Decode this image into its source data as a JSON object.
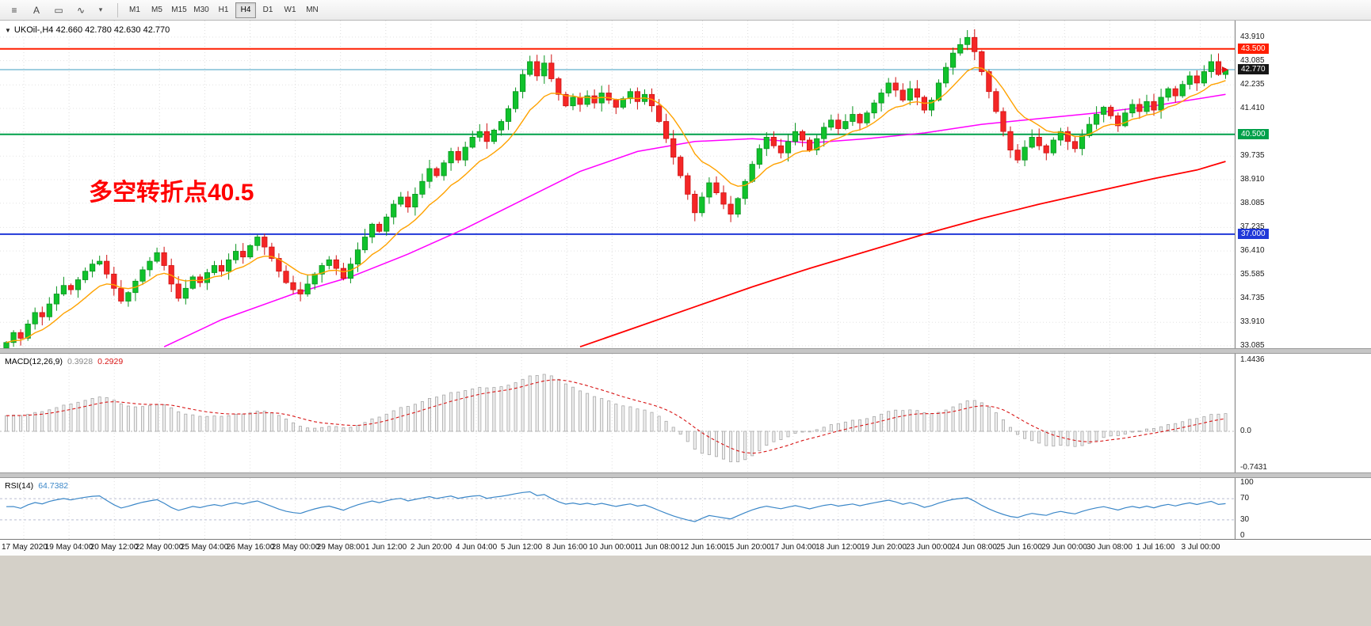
{
  "toolbar": {
    "left_icons": [
      {
        "name": "charts-list-icon",
        "glyph": "≡"
      },
      {
        "name": "text-tool-icon",
        "glyph": "A"
      },
      {
        "name": "shape-tool-icon",
        "glyph": "▭"
      },
      {
        "name": "line-studies-icon",
        "glyph": "∿"
      },
      {
        "name": "dropdown-caret-icon",
        "glyph": "▾"
      }
    ],
    "timeframes": [
      "M1",
      "M5",
      "M15",
      "M30",
      "H1",
      "H4",
      "D1",
      "W1",
      "MN"
    ],
    "selected_timeframe": "H4"
  },
  "chart": {
    "title": "UKOil-,H4 42.660 42.780 42.630 42.770",
    "symbol": "UKOil-",
    "period": "H4",
    "annotation": "多空转折点40.5",
    "axis_labels": [
      "43.910",
      "43.085",
      "42.235",
      "41.410",
      "39.735",
      "38.910",
      "38.085",
      "37.235",
      "36.410",
      "35.585",
      "34.735",
      "33.910",
      "33.085"
    ],
    "badges": [
      {
        "label": "43.500",
        "price": 43.5,
        "color": "#ff1e00"
      },
      {
        "label": "42.770",
        "price": 42.77,
        "color": "#161616"
      },
      {
        "label": "40.500",
        "price": 40.5,
        "color": "#00a04a"
      },
      {
        "label": "37.000",
        "price": 37.0,
        "color": "#2038d8"
      }
    ],
    "hlines": [
      {
        "price": 43.5,
        "color": "#ff1e00",
        "width": 2,
        "dash": ""
      },
      {
        "price": 42.77,
        "color": "#3d9dc0",
        "width": 1,
        "dash": ""
      },
      {
        "price": 40.5,
        "color": "#00a04a",
        "width": 2,
        "dash": ""
      },
      {
        "price": 37.0,
        "color": "#2038d8",
        "width": 2,
        "dash": ""
      }
    ]
  },
  "macd": {
    "name": "MACD(12,26,9)",
    "value_main": "0.3928",
    "value_signal": "0.2929",
    "axis": [
      "1.4436",
      "0.0",
      "-0.7431"
    ]
  },
  "rsi": {
    "name": "RSI(14)",
    "value": "64.7382",
    "axis": [
      "100",
      "70",
      "30",
      "0"
    ],
    "levels": [
      70,
      30
    ]
  },
  "time_axis": [
    "17 May 2020",
    "19 May 04:00",
    "20 May 12:00",
    "22 May 00:00",
    "25 May 04:00",
    "26 May 16:00",
    "28 May 00:00",
    "29 May 08:00",
    "1 Jun 12:00",
    "2 Jun 20:00",
    "4 Jun 04:00",
    "5 Jun 12:00",
    "8 Jun 16:00",
    "10 Jun 00:00",
    "11 Jun 08:00",
    "12 Jun 16:00",
    "15 Jun 20:00",
    "17 Jun 04:00",
    "18 Jun 12:00",
    "19 Jun 20:00",
    "23 Jun 00:00",
    "24 Jun 08:00",
    "25 Jun 16:00",
    "29 Jun 00:00",
    "30 Jun 08:00",
    "1 Jul 16:00",
    "3 Jul 00:00"
  ],
  "chart_data": {
    "type": "candlestick",
    "symbol": "UKOil-",
    "timeframe": "H4",
    "last_bar_ohlc": {
      "open": 42.66,
      "high": 42.78,
      "low": 42.63,
      "close": 42.77
    },
    "price_range_visible": [
      33.085,
      43.91
    ],
    "grid_prices": [
      43.91,
      43.085,
      42.235,
      41.41,
      40.585,
      39.735,
      38.91,
      38.085,
      37.235,
      36.41,
      35.585,
      34.735,
      33.91,
      33.085
    ],
    "closes": [
      33.2,
      33.55,
      33.35,
      33.85,
      34.25,
      34.1,
      34.55,
      34.9,
      35.2,
      35.05,
      35.4,
      35.7,
      35.95,
      36.05,
      35.6,
      35.1,
      34.65,
      34.95,
      35.35,
      35.75,
      36.05,
      36.35,
      35.9,
      35.25,
      34.75,
      35.1,
      35.5,
      35.3,
      35.65,
      35.9,
      35.7,
      36.1,
      36.4,
      36.2,
      36.6,
      36.9,
      36.55,
      36.15,
      35.7,
      35.3,
      35.05,
      34.9,
      35.25,
      35.6,
      35.9,
      36.1,
      35.8,
      35.45,
      35.95,
      36.45,
      36.9,
      37.35,
      37.1,
      37.6,
      38.05,
      38.3,
      37.95,
      38.4,
      38.85,
      39.3,
      39.05,
      39.5,
      39.9,
      39.6,
      40.05,
      40.4,
      40.6,
      40.25,
      40.65,
      40.95,
      41.4,
      42.0,
      42.6,
      43.05,
      42.55,
      43.0,
      42.45,
      41.9,
      41.5,
      41.8,
      41.55,
      41.85,
      41.6,
      41.95,
      41.7,
      41.45,
      41.75,
      42.0,
      41.65,
      41.9,
      41.5,
      40.95,
      40.35,
      39.7,
      39.05,
      38.4,
      37.75,
      38.3,
      38.8,
      38.45,
      38.05,
      37.7,
      38.25,
      38.85,
      39.45,
      40.0,
      40.4,
      40.1,
      39.85,
      40.25,
      40.6,
      40.3,
      39.95,
      40.35,
      40.75,
      41.0,
      40.7,
      40.95,
      41.2,
      40.9,
      41.25,
      41.6,
      41.95,
      42.3,
      42.05,
      41.7,
      42.1,
      41.8,
      41.35,
      41.7,
      42.3,
      42.85,
      43.35,
      43.65,
      43.9,
      43.4,
      42.7,
      42.0,
      41.3,
      40.6,
      39.95,
      39.6,
      40.05,
      40.4,
      40.1,
      39.85,
      40.3,
      40.6,
      40.25,
      40.0,
      40.45,
      40.85,
      41.2,
      41.45,
      41.15,
      40.8,
      41.25,
      41.55,
      41.3,
      41.65,
      41.35,
      41.8,
      42.1,
      41.85,
      42.25,
      42.55,
      42.3,
      42.7,
      43.05,
      42.6,
      42.77
    ],
    "moving_averages": {
      "fast_ema_period": 10,
      "fast_color": "#ffa200",
      "medium_color": "#ff00ff",
      "medium_anchors": [
        [
          22,
          33.05
        ],
        [
          30,
          34.0
        ],
        [
          40,
          34.9
        ],
        [
          48,
          35.5
        ],
        [
          56,
          36.3
        ],
        [
          64,
          37.2
        ],
        [
          72,
          38.2
        ],
        [
          80,
          39.2
        ],
        [
          88,
          39.9
        ],
        [
          96,
          40.25
        ],
        [
          104,
          40.35
        ],
        [
          112,
          40.2
        ],
        [
          120,
          40.35
        ],
        [
          128,
          40.55
        ],
        [
          136,
          40.85
        ],
        [
          144,
          41.05
        ],
        [
          152,
          41.25
        ],
        [
          160,
          41.5
        ],
        [
          170,
          41.9
        ]
      ],
      "slow_color": "#ff0000",
      "slow_anchors": [
        [
          80,
          33.05
        ],
        [
          88,
          33.75
        ],
        [
          96,
          34.45
        ],
        [
          104,
          35.15
        ],
        [
          112,
          35.8
        ],
        [
          120,
          36.4
        ],
        [
          128,
          37.0
        ],
        [
          136,
          37.55
        ],
        [
          144,
          38.05
        ],
        [
          152,
          38.5
        ],
        [
          160,
          38.95
        ],
        [
          166,
          39.25
        ],
        [
          170,
          39.55
        ]
      ]
    },
    "colors": {
      "candle_up": "#10c22c",
      "candle_up_border": "#0b9420",
      "candle_down": "#f42626",
      "candle_down_border": "#cf1212",
      "macd_histogram": "#a8a8a8",
      "macd_signal": "#d81616",
      "rsi_line": "#3b87c8"
    }
  }
}
